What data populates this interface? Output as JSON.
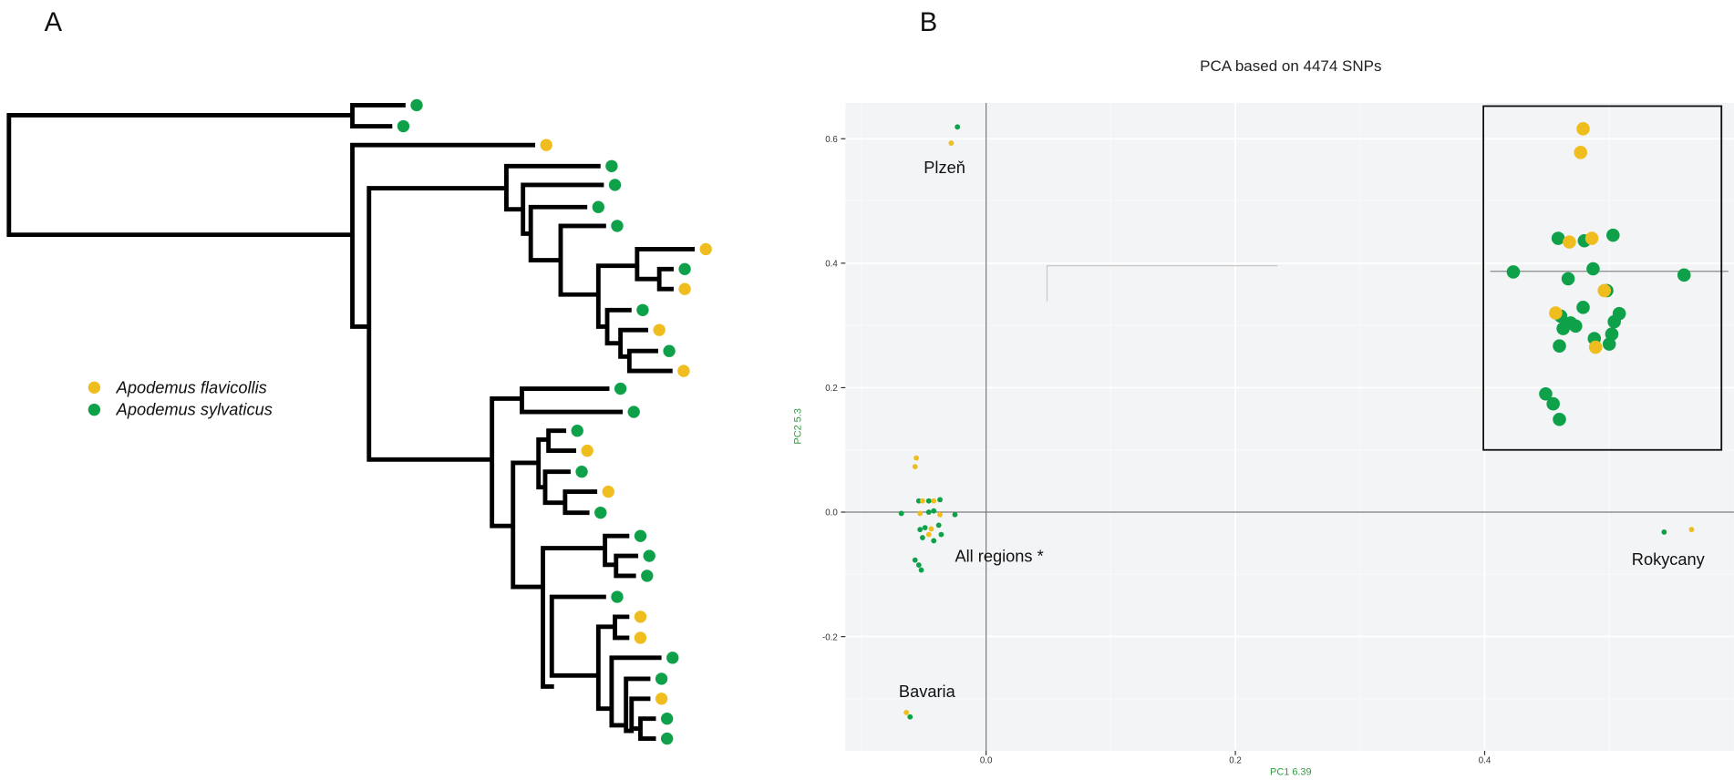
{
  "panels": {
    "a_label": "A",
    "b_label": "B"
  },
  "colors": {
    "flavicollis": "#EFBE1E",
    "sylvaticus": "#0FA14A"
  },
  "legend": [
    {
      "species": "flavicollis",
      "label": "Apodemus flavicollis"
    },
    {
      "species": "sylvaticus",
      "label": "Apodemus sylvaticus"
    }
  ],
  "tree": {
    "tips_top_to_bottom": [
      "sylvaticus",
      "sylvaticus",
      "flavicollis",
      "sylvaticus",
      "sylvaticus",
      "sylvaticus",
      "sylvaticus",
      "flavicollis",
      "sylvaticus",
      "flavicollis",
      "sylvaticus",
      "flavicollis",
      "sylvaticus",
      "flavicollis",
      "sylvaticus",
      "sylvaticus",
      "sylvaticus",
      "flavicollis",
      "sylvaticus",
      "flavicollis",
      "sylvaticus",
      "sylvaticus",
      "sylvaticus",
      "sylvaticus",
      "sylvaticus",
      "flavicollis",
      "flavicollis",
      "sylvaticus",
      "sylvaticus",
      "flavicollis",
      "sylvaticus",
      "sylvaticus"
    ]
  },
  "chart_data": {
    "type": "scatter",
    "title": "PCA based on 4474 SNPs",
    "xlabel": "PC1 6.39",
    "ylabel": "PC2 5.3",
    "xlim": [
      -0.113,
      0.601
    ],
    "ylim": [
      -0.384,
      0.656
    ],
    "xticks": [
      {
        "v": 0.0,
        "label": "0.0"
      },
      {
        "v": 0.2,
        "label": "0.2"
      },
      {
        "v": 0.4,
        "label": "0.4"
      }
    ],
    "yticks": [
      {
        "v": 0.6,
        "label": "0.6"
      },
      {
        "v": 0.4,
        "label": "0.4"
      },
      {
        "v": 0.2,
        "label": "0.2"
      },
      {
        "v": 0.0,
        "label": "0.0"
      },
      {
        "v": -0.2,
        "label": "-0.2"
      }
    ],
    "grid": true,
    "reference_lines": {
      "x": 0,
      "y": 0
    },
    "highlight_box": {
      "x": [
        0.399,
        0.59
      ],
      "y": [
        0.1,
        0.656
      ]
    },
    "annotations": [
      {
        "text": "Plzeň",
        "x": -0.05,
        "y": 0.545
      },
      {
        "text": "All regions *",
        "x": -0.025,
        "y": -0.08
      },
      {
        "text": "Rokycany",
        "x": 0.518,
        "y": -0.085
      },
      {
        "text": "Bavaria",
        "x": -0.07,
        "y": -0.297
      }
    ],
    "points": [
      {
        "x": 0.479,
        "y": 0.616,
        "species": "flavicollis",
        "size": "large"
      },
      {
        "x": 0.477,
        "y": 0.578,
        "species": "flavicollis",
        "size": "large"
      },
      {
        "x": 0.459,
        "y": 0.44,
        "species": "sylvaticus",
        "size": "large"
      },
      {
        "x": 0.468,
        "y": 0.434,
        "species": "flavicollis",
        "size": "large"
      },
      {
        "x": 0.48,
        "y": 0.436,
        "species": "sylvaticus",
        "size": "large"
      },
      {
        "x": 0.486,
        "y": 0.44,
        "species": "flavicollis",
        "size": "large"
      },
      {
        "x": 0.503,
        "y": 0.445,
        "species": "sylvaticus",
        "size": "large"
      },
      {
        "x": 0.423,
        "y": 0.386,
        "species": "sylvaticus",
        "size": "large"
      },
      {
        "x": 0.467,
        "y": 0.375,
        "species": "sylvaticus",
        "size": "large"
      },
      {
        "x": 0.487,
        "y": 0.391,
        "species": "sylvaticus",
        "size": "large"
      },
      {
        "x": 0.56,
        "y": 0.381,
        "species": "sylvaticus",
        "size": "large"
      },
      {
        "x": 0.498,
        "y": 0.356,
        "species": "sylvaticus",
        "size": "large"
      },
      {
        "x": 0.496,
        "y": 0.356,
        "species": "flavicollis",
        "size": "large"
      },
      {
        "x": 0.479,
        "y": 0.329,
        "species": "sylvaticus",
        "size": "large"
      },
      {
        "x": 0.461,
        "y": 0.315,
        "species": "sylvaticus",
        "size": "large"
      },
      {
        "x": 0.457,
        "y": 0.32,
        "species": "flavicollis",
        "size": "large"
      },
      {
        "x": 0.508,
        "y": 0.319,
        "species": "sylvaticus",
        "size": "large"
      },
      {
        "x": 0.463,
        "y": 0.295,
        "species": "sylvaticus",
        "size": "large"
      },
      {
        "x": 0.469,
        "y": 0.304,
        "species": "sylvaticus",
        "size": "large"
      },
      {
        "x": 0.473,
        "y": 0.299,
        "species": "sylvaticus",
        "size": "large"
      },
      {
        "x": 0.502,
        "y": 0.286,
        "species": "sylvaticus",
        "size": "large"
      },
      {
        "x": 0.504,
        "y": 0.306,
        "species": "sylvaticus",
        "size": "large"
      },
      {
        "x": 0.488,
        "y": 0.279,
        "species": "sylvaticus",
        "size": "large"
      },
      {
        "x": 0.5,
        "y": 0.27,
        "species": "sylvaticus",
        "size": "large"
      },
      {
        "x": 0.489,
        "y": 0.265,
        "species": "flavicollis",
        "size": "large"
      },
      {
        "x": 0.46,
        "y": 0.267,
        "species": "sylvaticus",
        "size": "large"
      },
      {
        "x": 0.449,
        "y": 0.19,
        "species": "sylvaticus",
        "size": "large"
      },
      {
        "x": 0.455,
        "y": 0.174,
        "species": "sylvaticus",
        "size": "large"
      },
      {
        "x": 0.46,
        "y": 0.149,
        "species": "sylvaticus",
        "size": "large"
      },
      {
        "x": -0.023,
        "y": 0.619,
        "species": "sylvaticus",
        "size": "small"
      },
      {
        "x": -0.028,
        "y": 0.593,
        "species": "flavicollis",
        "size": "small"
      },
      {
        "x": 0.544,
        "y": -0.032,
        "species": "sylvaticus",
        "size": "small"
      },
      {
        "x": 0.566,
        "y": -0.028,
        "species": "flavicollis",
        "size": "small"
      },
      {
        "x": -0.064,
        "y": -0.322,
        "species": "flavicollis",
        "size": "small"
      },
      {
        "x": -0.061,
        "y": -0.329,
        "species": "sylvaticus",
        "size": "small"
      },
      {
        "x": -0.056,
        "y": 0.087,
        "species": "flavicollis",
        "size": "small"
      },
      {
        "x": -0.057,
        "y": 0.073,
        "species": "flavicollis",
        "size": "small"
      },
      {
        "x": -0.068,
        "y": -0.002,
        "species": "sylvaticus",
        "size": "small"
      },
      {
        "x": -0.054,
        "y": 0.018,
        "species": "sylvaticus",
        "size": "small"
      },
      {
        "x": -0.051,
        "y": 0.018,
        "species": "flavicollis",
        "size": "small"
      },
      {
        "x": -0.046,
        "y": 0.018,
        "species": "sylvaticus",
        "size": "small"
      },
      {
        "x": -0.042,
        "y": 0.018,
        "species": "flavicollis",
        "size": "small"
      },
      {
        "x": -0.037,
        "y": 0.02,
        "species": "sylvaticus",
        "size": "small"
      },
      {
        "x": -0.053,
        "y": -0.002,
        "species": "flavicollis",
        "size": "small"
      },
      {
        "x": -0.046,
        "y": 0.0,
        "species": "sylvaticus",
        "size": "small"
      },
      {
        "x": -0.042,
        "y": 0.002,
        "species": "sylvaticus",
        "size": "small"
      },
      {
        "x": -0.037,
        "y": -0.004,
        "species": "flavicollis",
        "size": "small"
      },
      {
        "x": -0.025,
        "y": -0.004,
        "species": "sylvaticus",
        "size": "small"
      },
      {
        "x": -0.053,
        "y": -0.028,
        "species": "sylvaticus",
        "size": "small"
      },
      {
        "x": -0.049,
        "y": -0.025,
        "species": "sylvaticus",
        "size": "small"
      },
      {
        "x": -0.044,
        "y": -0.027,
        "species": "flavicollis",
        "size": "small"
      },
      {
        "x": -0.038,
        "y": -0.021,
        "species": "sylvaticus",
        "size": "small"
      },
      {
        "x": -0.036,
        "y": -0.036,
        "species": "sylvaticus",
        "size": "small"
      },
      {
        "x": -0.042,
        "y": -0.046,
        "species": "sylvaticus",
        "size": "small"
      },
      {
        "x": -0.051,
        "y": -0.041,
        "species": "sylvaticus",
        "size": "small"
      },
      {
        "x": -0.046,
        "y": -0.036,
        "species": "flavicollis",
        "size": "small"
      },
      {
        "x": -0.057,
        "y": -0.077,
        "species": "sylvaticus",
        "size": "small"
      },
      {
        "x": -0.054,
        "y": -0.085,
        "species": "sylvaticus",
        "size": "small"
      },
      {
        "x": -0.052,
        "y": -0.093,
        "species": "sylvaticus",
        "size": "small"
      }
    ]
  }
}
